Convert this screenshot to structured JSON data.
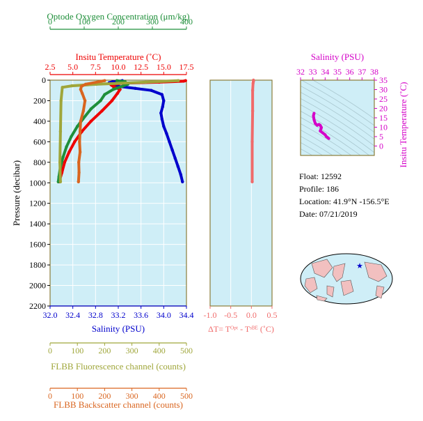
{
  "colors": {
    "oxygen": "#1f8f3a",
    "temperature": "#ee0000",
    "salinity": "#0000cc",
    "fluorescence": "#9fa63a",
    "backscatter": "#d9651f",
    "delta_t": "#f06a6a",
    "salinity_ts": "#d400c8",
    "panel_bg": "#cfeef7",
    "axis": "#8b7d3a"
  },
  "info": {
    "float": "Float:  12592",
    "profile": "Profile:  186",
    "location": "Location:  41.9°N  -156.5°E",
    "date": "Date:  07/21/2019"
  },
  "chart_data": [
    {
      "type": "line",
      "panel": "profiles",
      "ylabel": "Pressure (decibar)",
      "ylim": [
        2200,
        0
      ],
      "yticks": [
        "0",
        "200",
        "400",
        "600",
        "800",
        "1000",
        "1200",
        "1400",
        "1600",
        "1800",
        "2000",
        "2200"
      ],
      "grid": true,
      "axes": {
        "oxygen": {
          "label": "Optode Oxygen Concentration (μm/kg)",
          "lim": [
            0,
            400
          ],
          "ticks": [
            "0",
            "100",
            "200",
            "300",
            "400"
          ]
        },
        "temperature": {
          "label": "Insitu Temperature (˚C)",
          "lim": [
            2.5,
            17.5
          ],
          "ticks": [
            "2.5",
            "5.0",
            "7.5",
            "10.0",
            "12.5",
            "15.0",
            "17.5"
          ]
        },
        "salinity": {
          "label": "Salinity (PSU)",
          "lim": [
            32.0,
            34.4
          ],
          "ticks": [
            "32.0",
            "32.4",
            "32.8",
            "33.2",
            "33.6",
            "34.0",
            "34.4"
          ]
        },
        "fluorescence": {
          "label": "FLBB Fluorescence channel (counts)",
          "lim": [
            0,
            500
          ],
          "ticks": [
            "0",
            "100",
            "200",
            "300",
            "400",
            "500"
          ]
        },
        "backscatter": {
          "label": "FLBB Backscatter channel (counts)",
          "lim": [
            0,
            500
          ],
          "ticks": [
            "0",
            "100",
            "200",
            "300",
            "400",
            "500"
          ]
        }
      },
      "series": [
        {
          "key": "salinity",
          "axis": "salinity",
          "points": [
            [
              33.27,
              5
            ],
            [
              33.24,
              10
            ],
            [
              33.1,
              15
            ],
            [
              33.04,
              25
            ],
            [
              33.12,
              40
            ],
            [
              33.2,
              60
            ],
            [
              33.5,
              80
            ],
            [
              33.78,
              100
            ],
            [
              33.97,
              140
            ],
            [
              34.0,
              200
            ],
            [
              33.98,
              260
            ],
            [
              33.95,
              320
            ],
            [
              33.97,
              380
            ],
            [
              34.0,
              450
            ],
            [
              34.05,
              520
            ],
            [
              34.1,
              600
            ],
            [
              34.15,
              680
            ],
            [
              34.2,
              760
            ],
            [
              34.25,
              840
            ],
            [
              34.3,
              920
            ],
            [
              34.33,
              990
            ]
          ]
        },
        {
          "key": "temperature",
          "axis": "temperature",
          "points": [
            [
              17.4,
              5
            ],
            [
              17.2,
              10
            ],
            [
              14.5,
              20
            ],
            [
              10.4,
              30
            ],
            [
              9.2,
              45
            ],
            [
              9.5,
              65
            ],
            [
              10.2,
              90
            ],
            [
              9.9,
              130
            ],
            [
              9.3,
              200
            ],
            [
              8.2,
              300
            ],
            [
              7.0,
              400
            ],
            [
              6.0,
              500
            ],
            [
              5.2,
              600
            ],
            [
              4.6,
              700
            ],
            [
              4.1,
              800
            ],
            [
              3.8,
              900
            ],
            [
              3.5,
              990
            ]
          ]
        },
        {
          "key": "oxygen",
          "axis": "oxygen",
          "points": [
            [
              196,
              5
            ],
            [
              220,
              15
            ],
            [
              228,
              40
            ],
            [
              212,
              60
            ],
            [
              185,
              90
            ],
            [
              160,
              140
            ],
            [
              148,
              200
            ],
            [
              120,
              280
            ],
            [
              96,
              380
            ],
            [
              80,
              450
            ],
            [
              62,
              550
            ],
            [
              48,
              650
            ],
            [
              38,
              750
            ],
            [
              30,
              850
            ],
            [
              26,
              940
            ],
            [
              24,
              990
            ]
          ]
        },
        {
          "key": "fluorescence",
          "axis": "fluorescence",
          "points": [
            [
              470,
              5
            ],
            [
              350,
              20
            ],
            [
              170,
              40
            ],
            [
              80,
              55
            ],
            [
              45,
              70
            ],
            [
              40,
              200
            ],
            [
              38,
              500
            ],
            [
              36,
              800
            ],
            [
              38,
              990
            ]
          ]
        },
        {
          "key": "backscatter",
          "axis": "backscatter",
          "points": [
            [
              200,
              5
            ],
            [
              130,
              40
            ],
            [
              115,
              60
            ],
            [
              112,
              90
            ],
            [
              118,
              130
            ],
            [
              128,
              200
            ],
            [
              122,
              300
            ],
            [
              112,
              400
            ],
            [
              110,
              500
            ],
            [
              108,
              600
            ],
            [
              110,
              700
            ],
            [
              105,
              800
            ],
            [
              106,
              900
            ],
            [
              104,
              990
            ]
          ]
        }
      ]
    },
    {
      "type": "line",
      "panel": "delta_t",
      "xlabel": "ΔT= Tᴼᵖᵗ - Tˢᴮᴱ (˚C)",
      "xlim": [
        -1.0,
        0.5
      ],
      "xticks": [
        "-1.0",
        "-0.5",
        "0.0",
        "0.5"
      ],
      "ylim": [
        2200,
        0
      ],
      "series": [
        {
          "name": "",
          "points": [
            [
              0.05,
              0
            ],
            [
              0.05,
              10
            ],
            [
              0.04,
              30
            ],
            [
              0.03,
              100
            ],
            [
              0.03,
              300
            ],
            [
              0.02,
              600
            ],
            [
              0.02,
              990
            ]
          ]
        }
      ]
    },
    {
      "type": "line",
      "panel": "ts",
      "xlabel": "Salinity (PSU)",
      "ylabel": "Insitu Temperature (˚C)",
      "xlim": [
        32,
        38
      ],
      "ylim": [
        -5,
        35
      ],
      "xticks": [
        "32",
        "33",
        "34",
        "35",
        "36",
        "37",
        "38"
      ],
      "yticks": [
        "0",
        "5",
        "10",
        "15",
        "20",
        "25",
        "30",
        "35"
      ],
      "series": [
        {
          "name": "",
          "points": [
            [
              33.1,
              17.4
            ],
            [
              33.05,
              16
            ],
            [
              33.1,
              14
            ],
            [
              33.2,
              12
            ],
            [
              33.35,
              11
            ],
            [
              33.5,
              11.5
            ],
            [
              33.6,
              11
            ],
            [
              33.7,
              9.8
            ],
            [
              33.6,
              8
            ],
            [
              33.8,
              7
            ],
            [
              34.0,
              6
            ],
            [
              34.1,
              5
            ],
            [
              34.2,
              4.5
            ],
            [
              34.3,
              4
            ]
          ]
        }
      ]
    }
  ]
}
